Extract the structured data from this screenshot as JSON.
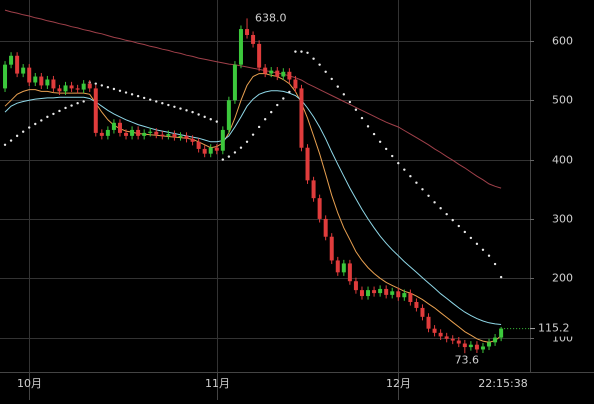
{
  "chart_data": {
    "type": "candlestick",
    "categories": [
      null,
      null,
      null,
      null,
      "10月",
      null,
      null,
      null,
      null,
      null,
      null,
      null,
      null,
      null,
      null,
      null,
      null,
      null,
      null,
      null,
      null,
      null,
      null,
      null,
      null,
      null,
      null,
      null,
      null,
      null,
      null,
      null,
      null,
      null,
      null,
      "11月",
      null,
      null,
      null,
      null,
      null,
      null,
      null,
      null,
      null,
      null,
      null,
      null,
      null,
      null,
      null,
      null,
      null,
      null,
      null,
      null,
      null,
      null,
      null,
      null,
      null,
      null,
      null,
      null,
      null,
      "12月",
      null,
      null,
      null,
      null,
      null,
      null,
      null,
      null,
      null,
      null,
      null,
      null,
      null,
      null,
      null,
      null,
      null
    ],
    "open": [
      520,
      560,
      575,
      545,
      555,
      530,
      540,
      525,
      535,
      520,
      515,
      525,
      520,
      518,
      528,
      520,
      445,
      440,
      450,
      462,
      445,
      440,
      450,
      440,
      445,
      447,
      442,
      440,
      443,
      438,
      440,
      435,
      430,
      418,
      410,
      420,
      415,
      450,
      500,
      560,
      620,
      610,
      595,
      555,
      545,
      550,
      540,
      548,
      535,
      520,
      420,
      365,
      335,
      300,
      270,
      230,
      210,
      225,
      195,
      180,
      170,
      180,
      175,
      182,
      172,
      178,
      168,
      175,
      160,
      150,
      135,
      115,
      108,
      102,
      98,
      95,
      90,
      84,
      88,
      80,
      85,
      92,
      100
    ],
    "high": [
      566,
      581,
      581,
      561,
      561,
      546,
      546,
      541,
      541,
      526,
      531,
      531,
      526,
      534,
      534,
      526,
      451,
      456,
      468,
      468,
      451,
      456,
      456,
      451,
      453,
      453,
      448,
      449,
      449,
      446,
      446,
      441,
      436,
      424,
      426,
      426,
      456,
      506,
      566,
      626,
      638,
      616,
      601,
      561,
      556,
      556,
      554,
      554,
      541,
      526,
      426,
      371,
      341,
      306,
      276,
      236,
      231,
      231,
      201,
      186,
      186,
      186,
      188,
      188,
      184,
      184,
      181,
      181,
      166,
      156,
      141,
      121,
      114,
      108,
      104,
      101,
      96,
      94,
      94,
      91,
      98,
      106,
      118
    ],
    "low": [
      514,
      554,
      539,
      539,
      524,
      524,
      519,
      519,
      514,
      509,
      509,
      514,
      512,
      512,
      514,
      439,
      434,
      434,
      444,
      439,
      434,
      434,
      434,
      434,
      439,
      436,
      434,
      434,
      432,
      432,
      429,
      424,
      412,
      404,
      404,
      409,
      409,
      444,
      494,
      554,
      604,
      589,
      549,
      539,
      539,
      534,
      534,
      529,
      514,
      414,
      359,
      329,
      294,
      264,
      224,
      204,
      204,
      189,
      174,
      164,
      164,
      169,
      169,
      166,
      166,
      162,
      162,
      154,
      144,
      129,
      109,
      102,
      96,
      92,
      89,
      84,
      73.6,
      78,
      74,
      74,
      79,
      86,
      94
    ],
    "close": [
      560,
      575,
      545,
      555,
      530,
      540,
      525,
      535,
      520,
      515,
      525,
      520,
      518,
      528,
      520,
      445,
      440,
      450,
      462,
      445,
      440,
      450,
      440,
      445,
      447,
      442,
      440,
      443,
      438,
      440,
      435,
      430,
      418,
      410,
      420,
      415,
      450,
      500,
      560,
      620,
      610,
      595,
      555,
      545,
      550,
      540,
      548,
      535,
      520,
      420,
      365,
      335,
      300,
      270,
      230,
      210,
      225,
      195,
      180,
      170,
      180,
      175,
      182,
      172,
      178,
      168,
      175,
      160,
      150,
      135,
      115,
      108,
      102,
      98,
      95,
      90,
      84,
      88,
      80,
      85,
      92,
      100,
      115.2
    ],
    "up_color": "#3cc83c",
    "down_color": "#e03c3c",
    "lines": [
      {
        "color": "#e8a050",
        "values": [
          490,
          500,
          510,
          515,
          518,
          518,
          515,
          515,
          513,
          512,
          512,
          512,
          512,
          512,
          510,
          495,
          480,
          467,
          458,
          452,
          448,
          446,
          444,
          443,
          442,
          441,
          440,
          439,
          438,
          437,
          436,
          434,
          430,
          425,
          420,
          422,
          428,
          445,
          470,
          500,
          525,
          540,
          545,
          545,
          542,
          540,
          535,
          528,
          515,
          495,
          470,
          440,
          410,
          375,
          340,
          310,
          285,
          265,
          245,
          230,
          218,
          208,
          200,
          193,
          188,
          183,
          178,
          175,
          170,
          164,
          157,
          150,
          142,
          134,
          126,
          118,
          110,
          104,
          98,
          94,
          92,
          95,
          103
        ]
      },
      {
        "color": "#8fd8e8",
        "values": [
          480,
          490,
          495,
          498,
          500,
          502,
          503,
          504,
          504,
          505,
          505,
          505,
          505,
          505,
          503,
          497,
          490,
          483,
          477,
          472,
          467,
          463,
          459,
          456,
          453,
          450,
          448,
          446,
          444,
          442,
          440,
          438,
          436,
          433,
          430,
          430,
          432,
          440,
          455,
          472,
          490,
          502,
          510,
          514,
          516,
          516,
          515,
          512,
          508,
          500,
          487,
          472,
          455,
          435,
          413,
          392,
          372,
          352,
          334,
          316,
          300,
          285,
          271,
          259,
          248,
          238,
          228,
          219,
          210,
          201,
          192,
          183,
          174,
          166,
          158,
          150,
          143,
          137,
          132,
          128,
          125,
          123,
          122
        ]
      },
      {
        "color": "#a0404a",
        "values": [
          652,
          649,
          647,
          644,
          642,
          639,
          637,
          634,
          632,
          629,
          627,
          624,
          622,
          619,
          617,
          614,
          612,
          609,
          606,
          604,
          601,
          599,
          596,
          594,
          591,
          589,
          586,
          584,
          581,
          579,
          576,
          574,
          571,
          569,
          567,
          565,
          563,
          561,
          560,
          558,
          556,
          554,
          552,
          550,
          548,
          546,
          544,
          541,
          538,
          534,
          528,
          523,
          518,
          513,
          508,
          503,
          498,
          493,
          488,
          483,
          478,
          473,
          468,
          463,
          459,
          455,
          449,
          443,
          437,
          431,
          425,
          418,
          412,
          405,
          399,
          392,
          386,
          379,
          372,
          366,
          359,
          355,
          352
        ]
      }
    ],
    "sar": {
      "color": "#e8e8e8",
      "values": [
        425,
        432,
        440,
        447,
        454,
        460,
        466,
        472,
        477,
        482,
        487,
        491,
        495,
        498,
        530,
        528,
        525,
        522,
        519,
        516,
        513,
        510,
        507,
        504,
        501,
        498,
        495,
        492,
        489,
        486,
        483,
        480,
        476,
        472,
        468,
        464,
        400,
        405,
        412,
        420,
        430,
        442,
        455,
        468,
        480,
        492,
        503,
        514,
        582,
        582,
        580,
        570,
        560,
        548,
        536,
        523,
        510,
        497,
        484,
        470,
        456,
        443,
        430,
        418,
        406,
        394,
        383,
        372,
        361,
        350,
        339,
        328,
        318,
        308,
        298,
        288,
        278,
        268,
        258,
        248,
        238,
        224,
        202
      ]
    },
    "ylim": [
      42,
      669
    ],
    "yticks": [
      100,
      200,
      300,
      400,
      500,
      600
    ],
    "grid": true,
    "high_label": {
      "value": 638,
      "label": "638.0"
    },
    "low_label": 73.6,
    "last_price": 115.2,
    "time": "22:15:38"
  }
}
